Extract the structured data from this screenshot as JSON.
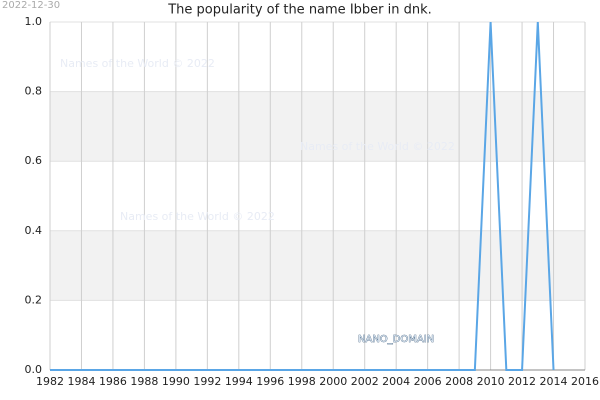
{
  "chart_data": {
    "type": "line",
    "title": "The popularity of the name Ibber in dnk.",
    "date_stamp": "2022-12-30",
    "watermarks": [
      "Names of the World © 2022",
      "Names of the World © 2022",
      "Names of the World © 2022",
      "NANO_DOMAIN"
    ],
    "x": [
      1982,
      1983,
      1984,
      1985,
      1986,
      1987,
      1988,
      1989,
      1990,
      1991,
      1992,
      1993,
      1994,
      1995,
      1996,
      1997,
      1998,
      1999,
      2000,
      2001,
      2002,
      2003,
      2004,
      2005,
      2006,
      2007,
      2008,
      2009,
      2010,
      2011,
      2012,
      2013,
      2014
    ],
    "series": [
      {
        "name": "Ibber",
        "color": "#5aa6e6",
        "values": [
          0,
          0,
          0,
          0,
          0,
          0,
          0,
          0,
          0,
          0,
          0,
          0,
          0,
          0,
          0,
          0,
          0,
          0,
          0,
          0,
          0,
          0,
          0,
          0,
          0,
          0,
          0,
          0,
          1,
          0,
          0,
          1,
          0
        ]
      }
    ],
    "xlim": [
      1982,
      2016
    ],
    "xticks": [
      1982,
      1984,
      1986,
      1988,
      1990,
      1992,
      1994,
      1996,
      1998,
      2000,
      2002,
      2004,
      2006,
      2008,
      2010,
      2012,
      2014,
      2016
    ],
    "ylim": [
      0,
      1
    ],
    "yticks": [
      {
        "value": 0,
        "label": "0.0"
      },
      {
        "value": 0.2,
        "label": "0.2"
      },
      {
        "value": 0.4,
        "label": "0.4"
      },
      {
        "value": 0.6,
        "label": "0.6"
      },
      {
        "value": 0.8,
        "label": "0.8"
      },
      {
        "value": 1,
        "label": "1.0"
      }
    ],
    "grid": true,
    "bands": true
  }
}
